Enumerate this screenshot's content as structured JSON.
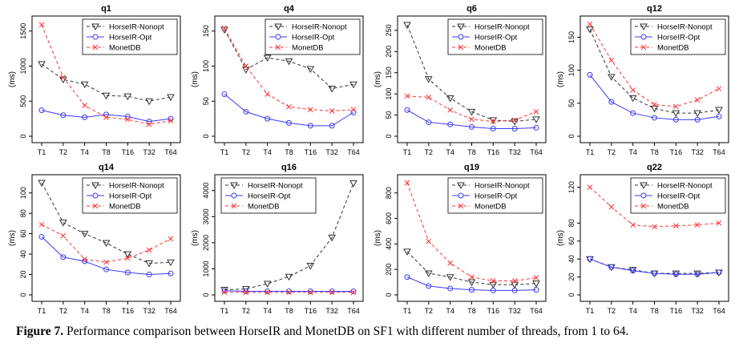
{
  "caption": {
    "label": "Figure 7.",
    "text": "Performance comparison between HorseIR and MonetDB on SF1 with different number of threads, from 1 to 64."
  },
  "colors": {
    "nonopt": "#333333",
    "opt": "#3a3aff",
    "monet": "#ff3333"
  },
  "chart_data": [
    {
      "type": "line",
      "title": "q1",
      "ylabel": "(ms)",
      "categories": [
        "T1",
        "T2",
        "T4",
        "T8",
        "T16",
        "T32",
        "T64"
      ],
      "yticks": [
        0,
        500,
        1000,
        1500
      ],
      "ylim": [
        0,
        1600
      ],
      "series": [
        {
          "name": "HorseIR-Nonopt",
          "values": [
            1030,
            810,
            740,
            580,
            570,
            500,
            560
          ]
        },
        {
          "name": "HorseIR-Opt",
          "values": [
            370,
            300,
            270,
            310,
            280,
            210,
            250
          ]
        },
        {
          "name": "MonetDB",
          "values": [
            1590,
            840,
            440,
            270,
            240,
            170,
            220
          ]
        }
      ],
      "legend": "top-right"
    },
    {
      "type": "line",
      "title": "q4",
      "ylabel": "(ms)",
      "categories": [
        "T1",
        "T2",
        "T4",
        "T8",
        "T16",
        "T32",
        "T64"
      ],
      "yticks": [
        0,
        50,
        100,
        150
      ],
      "ylim": [
        0,
        160
      ],
      "series": [
        {
          "name": "HorseIR-Nonopt",
          "values": [
            152,
            95,
            112,
            107,
            96,
            68,
            74
          ]
        },
        {
          "name": "HorseIR-Opt",
          "values": [
            60,
            35,
            25,
            19,
            15,
            15,
            34
          ]
        },
        {
          "name": "MonetDB",
          "values": [
            154,
            100,
            60,
            42,
            38,
            36,
            38
          ]
        }
      ],
      "legend": "top-right"
    },
    {
      "type": "line",
      "title": "q6",
      "ylabel": "(ms)",
      "categories": [
        "T1",
        "T2",
        "T4",
        "T8",
        "T16",
        "T32",
        "T64"
      ],
      "yticks": [
        0,
        50,
        100,
        150,
        200,
        250
      ],
      "ylim": [
        0,
        265
      ],
      "series": [
        {
          "name": "HorseIR-Nonopt",
          "values": [
            263,
            135,
            90,
            58,
            38,
            35,
            40
          ]
        },
        {
          "name": "HorseIR-Opt",
          "values": [
            62,
            33,
            28,
            22,
            18,
            18,
            20
          ]
        },
        {
          "name": "MonetDB",
          "values": [
            95,
            92,
            62,
            40,
            35,
            38,
            58
          ]
        }
      ],
      "legend": "top-right"
    },
    {
      "type": "line",
      "title": "q12",
      "ylabel": "(ms)",
      "categories": [
        "T1",
        "T2",
        "T4",
        "T8",
        "T16",
        "T32",
        "T64"
      ],
      "yticks": [
        0,
        50,
        100,
        150
      ],
      "ylim": [
        0,
        170
      ],
      "series": [
        {
          "name": "HorseIR-Nonopt",
          "values": [
            162,
            90,
            58,
            42,
            35,
            35,
            40
          ]
        },
        {
          "name": "HorseIR-Opt",
          "values": [
            93,
            52,
            35,
            28,
            25,
            25,
            30
          ]
        },
        {
          "name": "MonetDB",
          "values": [
            170,
            115,
            70,
            48,
            45,
            55,
            72
          ]
        }
      ],
      "legend": "top-right"
    },
    {
      "type": "line",
      "title": "q14",
      "ylabel": "(ms)",
      "categories": [
        "T1",
        "T2",
        "T4",
        "T8",
        "T16",
        "T32",
        "T64"
      ],
      "yticks": [
        0,
        20,
        40,
        60,
        80,
        100
      ],
      "ylim": [
        0,
        110
      ],
      "series": [
        {
          "name": "HorseIR-Nonopt",
          "values": [
            110,
            71,
            60,
            51,
            40,
            31,
            32
          ]
        },
        {
          "name": "HorseIR-Opt",
          "values": [
            57,
            37,
            33,
            25,
            22,
            20,
            21
          ]
        },
        {
          "name": "MonetDB",
          "values": [
            69,
            58,
            35,
            32,
            36,
            44,
            55
          ]
        }
      ],
      "legend": "top-right"
    },
    {
      "type": "line",
      "title": "q16",
      "ylabel": "(ms)",
      "categories": [
        "T1",
        "T2",
        "T4",
        "T8",
        "T16",
        "T32",
        "T64"
      ],
      "yticks": [
        0,
        1000,
        2000,
        3000,
        4000
      ],
      "ylim": [
        0,
        4300
      ],
      "series": [
        {
          "name": "HorseIR-Nonopt",
          "values": [
            200,
            230,
            430,
            700,
            1120,
            2200,
            4280
          ]
        },
        {
          "name": "HorseIR-Opt",
          "values": [
            160,
            140,
            140,
            140,
            140,
            140,
            140
          ]
        },
        {
          "name": "MonetDB",
          "values": [
            100,
            100,
            100,
            100,
            100,
            100,
            100
          ]
        }
      ],
      "legend": "top-left"
    },
    {
      "type": "line",
      "title": "q19",
      "ylabel": "(ms)",
      "categories": [
        "T1",
        "T2",
        "T4",
        "T8",
        "T16",
        "T32",
        "T64"
      ],
      "yticks": [
        0,
        200,
        400,
        600,
        800
      ],
      "ylim": [
        0,
        880
      ],
      "series": [
        {
          "name": "HorseIR-Nonopt",
          "values": [
            340,
            170,
            140,
            100,
            80,
            80,
            90
          ]
        },
        {
          "name": "HorseIR-Opt",
          "values": [
            140,
            70,
            50,
            40,
            35,
            35,
            40
          ]
        },
        {
          "name": "MonetDB",
          "values": [
            880,
            420,
            250,
            140,
            110,
            110,
            135
          ]
        }
      ],
      "legend": "top-right"
    },
    {
      "type": "line",
      "title": "q22",
      "ylabel": "(ms)",
      "categories": [
        "T1",
        "T2",
        "T4",
        "T8",
        "T16",
        "T32",
        "T64"
      ],
      "yticks": [
        0,
        20,
        40,
        60,
        80,
        120
      ],
      "ylim": [
        0,
        125
      ],
      "series": [
        {
          "name": "HorseIR-Nonopt",
          "values": [
            40,
            31,
            28,
            24,
            24,
            24,
            25
          ]
        },
        {
          "name": "HorseIR-Opt",
          "values": [
            40,
            31,
            27,
            24,
            23,
            23,
            25
          ]
        },
        {
          "name": "MonetDB",
          "values": [
            120,
            98,
            78,
            76,
            77,
            78,
            80
          ]
        }
      ],
      "legend": "top-right"
    }
  ]
}
